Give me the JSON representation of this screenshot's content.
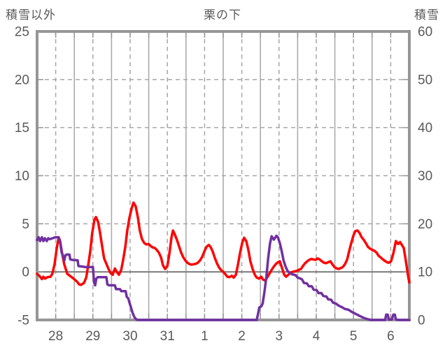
{
  "chart_data": {
    "type": "line",
    "title": "栗の下",
    "left_axis": {
      "title": "積雪以外",
      "min": -5,
      "max": 25,
      "ticks": [
        25,
        20,
        15,
        10,
        5,
        0,
        -5
      ]
    },
    "right_axis": {
      "title": "積雪",
      "min": 0,
      "max": 60,
      "ticks": [
        60,
        50,
        40,
        30,
        20,
        10,
        0
      ]
    },
    "x_axis": {
      "labels": [
        "28",
        "29",
        "30",
        "31",
        "1",
        "2",
        "3",
        "4",
        "5",
        "6"
      ],
      "days": 10
    },
    "grid": {
      "horizontal_dashed_at": [
        20,
        15,
        10,
        5
      ],
      "zero_line_at": 0,
      "vertical_solid_every_day": true,
      "vertical_dashed_at_half_day": true
    },
    "legend": "none",
    "colors": {
      "red_series": "#ff0000",
      "purple_series": "#7030a0",
      "text": "#595959",
      "grid": "#a6a6a6",
      "frame": "#969696",
      "zero_line": "#808080"
    },
    "series": [
      {
        "name": "積雪以外",
        "axis": "left",
        "color_key": "red_series",
        "points": [
          [
            0.0,
            -0.2
          ],
          [
            0.07,
            -0.45
          ],
          [
            0.13,
            -0.75
          ],
          [
            0.17,
            -0.5
          ],
          [
            0.21,
            -0.7
          ],
          [
            0.28,
            -0.55
          ],
          [
            0.36,
            -0.5
          ],
          [
            0.41,
            -0.2
          ],
          [
            0.47,
            0.8
          ],
          [
            0.53,
            2.5
          ],
          [
            0.58,
            3.6
          ],
          [
            0.62,
            3.2
          ],
          [
            0.66,
            2.2
          ],
          [
            0.73,
            0.8
          ],
          [
            0.81,
            -0.2
          ],
          [
            0.88,
            -0.4
          ],
          [
            0.98,
            -0.7
          ],
          [
            1.07,
            -1.0
          ],
          [
            1.13,
            -1.3
          ],
          [
            1.18,
            -1.35
          ],
          [
            1.26,
            -1.15
          ],
          [
            1.32,
            -0.6
          ],
          [
            1.37,
            0.6
          ],
          [
            1.43,
            2.2
          ],
          [
            1.48,
            4.0
          ],
          [
            1.54,
            5.4
          ],
          [
            1.58,
            5.7
          ],
          [
            1.64,
            5.2
          ],
          [
            1.69,
            4.1
          ],
          [
            1.75,
            2.6
          ],
          [
            1.8,
            1.4
          ],
          [
            1.86,
            0.85
          ],
          [
            1.92,
            0.3
          ],
          [
            1.97,
            -0.1
          ],
          [
            2.03,
            -0.3
          ],
          [
            2.09,
            0.35
          ],
          [
            2.14,
            0.0
          ],
          [
            2.2,
            -0.3
          ],
          [
            2.26,
            0.2
          ],
          [
            2.31,
            1.2
          ],
          [
            2.37,
            2.6
          ],
          [
            2.42,
            4.2
          ],
          [
            2.48,
            5.6
          ],
          [
            2.54,
            6.6
          ],
          [
            2.59,
            7.2
          ],
          [
            2.65,
            6.8
          ],
          [
            2.71,
            5.6
          ],
          [
            2.76,
            4.3
          ],
          [
            2.82,
            3.4
          ],
          [
            2.88,
            3.0
          ],
          [
            2.93,
            2.85
          ],
          [
            2.99,
            2.9
          ],
          [
            3.05,
            2.7
          ],
          [
            3.1,
            2.55
          ],
          [
            3.16,
            2.5
          ],
          [
            3.21,
            2.3
          ],
          [
            3.27,
            2.0
          ],
          [
            3.33,
            1.5
          ],
          [
            3.38,
            0.7
          ],
          [
            3.44,
            0.3
          ],
          [
            3.5,
            0.6
          ],
          [
            3.55,
            1.8
          ],
          [
            3.61,
            3.6
          ],
          [
            3.65,
            4.3
          ],
          [
            3.7,
            3.9
          ],
          [
            3.76,
            3.3
          ],
          [
            3.82,
            2.6
          ],
          [
            3.87,
            2.0
          ],
          [
            3.93,
            1.5
          ],
          [
            3.98,
            1.2
          ],
          [
            4.04,
            0.95
          ],
          [
            4.1,
            0.8
          ],
          [
            4.15,
            0.75
          ],
          [
            4.21,
            0.8
          ],
          [
            4.27,
            0.85
          ],
          [
            4.32,
            0.95
          ],
          [
            4.38,
            1.2
          ],
          [
            4.44,
            1.6
          ],
          [
            4.49,
            2.1
          ],
          [
            4.55,
            2.6
          ],
          [
            4.61,
            2.8
          ],
          [
            4.66,
            2.6
          ],
          [
            4.72,
            2.1
          ],
          [
            4.77,
            1.5
          ],
          [
            4.83,
            0.9
          ],
          [
            4.89,
            0.45
          ],
          [
            4.94,
            0.2
          ],
          [
            5.0,
            0.0
          ],
          [
            5.06,
            -0.25
          ],
          [
            5.11,
            -0.5
          ],
          [
            5.17,
            -0.55
          ],
          [
            5.23,
            -0.4
          ],
          [
            5.28,
            -0.6
          ],
          [
            5.34,
            -0.3
          ],
          [
            5.39,
            0.6
          ],
          [
            5.45,
            1.9
          ],
          [
            5.51,
            3.0
          ],
          [
            5.56,
            3.55
          ],
          [
            5.62,
            3.2
          ],
          [
            5.68,
            2.2
          ],
          [
            5.73,
            1.1
          ],
          [
            5.79,
            0.3
          ],
          [
            5.85,
            -0.3
          ],
          [
            5.9,
            -0.6
          ],
          [
            5.96,
            -0.7
          ],
          [
            6.02,
            -0.5
          ],
          [
            6.07,
            -0.8
          ],
          [
            6.13,
            -0.9
          ],
          [
            6.18,
            -0.6
          ],
          [
            6.24,
            -0.2
          ],
          [
            6.3,
            0.2
          ],
          [
            6.35,
            0.5
          ],
          [
            6.41,
            0.8
          ],
          [
            6.47,
            1.0
          ],
          [
            6.52,
            1.1
          ],
          [
            6.58,
            0.4
          ],
          [
            6.64,
            -0.3
          ],
          [
            6.69,
            -0.5
          ],
          [
            6.75,
            -0.3
          ],
          [
            6.8,
            -0.1
          ],
          [
            6.86,
            0.0
          ],
          [
            6.92,
            0.05
          ],
          [
            6.97,
            0.1
          ],
          [
            7.03,
            0.2
          ],
          [
            7.09,
            0.3
          ],
          [
            7.14,
            0.6
          ],
          [
            7.2,
            0.9
          ],
          [
            7.26,
            1.1
          ],
          [
            7.31,
            1.25
          ],
          [
            7.37,
            1.35
          ],
          [
            7.42,
            1.3
          ],
          [
            7.48,
            1.25
          ],
          [
            7.54,
            1.4
          ],
          [
            7.59,
            1.3
          ],
          [
            7.65,
            1.1
          ],
          [
            7.71,
            0.95
          ],
          [
            7.76,
            0.9
          ],
          [
            7.82,
            1.0
          ],
          [
            7.88,
            1.1
          ],
          [
            7.93,
            0.8
          ],
          [
            7.99,
            0.5
          ],
          [
            8.05,
            0.35
          ],
          [
            8.1,
            0.3
          ],
          [
            8.16,
            0.4
          ],
          [
            8.21,
            0.5
          ],
          [
            8.27,
            0.8
          ],
          [
            8.33,
            1.3
          ],
          [
            8.38,
            2.1
          ],
          [
            8.44,
            3.0
          ],
          [
            8.5,
            3.8
          ],
          [
            8.55,
            4.25
          ],
          [
            8.61,
            4.3
          ],
          [
            8.67,
            4.0
          ],
          [
            8.72,
            3.6
          ],
          [
            8.78,
            3.3
          ],
          [
            8.83,
            3.0
          ],
          [
            8.89,
            2.6
          ],
          [
            8.95,
            2.4
          ],
          [
            9.0,
            2.3
          ],
          [
            9.06,
            2.2
          ],
          [
            9.12,
            2.0
          ],
          [
            9.17,
            1.7
          ],
          [
            9.23,
            1.5
          ],
          [
            9.29,
            1.3
          ],
          [
            9.34,
            1.15
          ],
          [
            9.4,
            1.0
          ],
          [
            9.45,
            0.95
          ],
          [
            9.51,
            1.1
          ],
          [
            9.57,
            1.9
          ],
          [
            9.64,
            3.2
          ],
          [
            9.7,
            2.9
          ],
          [
            9.75,
            3.1
          ],
          [
            9.85,
            2.5
          ],
          [
            9.9,
            1.3
          ],
          [
            9.94,
            0.3
          ],
          [
            9.97,
            -0.5
          ],
          [
            10.0,
            -1.1
          ]
        ]
      },
      {
        "name": "積雪",
        "axis": "right",
        "color_key": "purple_series",
        "points": [
          [
            0.0,
            16.6
          ],
          [
            0.04,
            17.2
          ],
          [
            0.08,
            16.4
          ],
          [
            0.13,
            17.2
          ],
          [
            0.17,
            16.4
          ],
          [
            0.21,
            17.0
          ],
          [
            0.26,
            16.4
          ],
          [
            0.3,
            17.0
          ],
          [
            0.34,
            16.8
          ],
          [
            0.42,
            17.0
          ],
          [
            0.49,
            17.2
          ],
          [
            0.56,
            17.2
          ],
          [
            0.6,
            16.8
          ],
          [
            0.63,
            15.6
          ],
          [
            0.66,
            14.0
          ],
          [
            0.69,
            13.5
          ],
          [
            0.73,
            12.3
          ],
          [
            0.76,
            13.4
          ],
          [
            0.79,
            13.6
          ],
          [
            0.87,
            13.6
          ],
          [
            0.89,
            12.6
          ],
          [
            0.95,
            12.5
          ],
          [
            1.09,
            12.4
          ],
          [
            1.11,
            11.2
          ],
          [
            1.23,
            11.1
          ],
          [
            1.28,
            11.0
          ],
          [
            1.5,
            11.0
          ],
          [
            1.53,
            7.8
          ],
          [
            1.56,
            7.2
          ],
          [
            1.59,
            8.6
          ],
          [
            1.63,
            8.9
          ],
          [
            1.86,
            8.9
          ],
          [
            1.89,
            7.4
          ],
          [
            1.93,
            7.2
          ],
          [
            2.09,
            7.2
          ],
          [
            2.12,
            6.4
          ],
          [
            2.23,
            6.4
          ],
          [
            2.26,
            6.0
          ],
          [
            2.38,
            6.0
          ],
          [
            2.41,
            4.8
          ],
          [
            2.45,
            4.5
          ],
          [
            2.49,
            3.4
          ],
          [
            2.53,
            2.4
          ],
          [
            2.57,
            1.4
          ],
          [
            2.62,
            0.5
          ],
          [
            2.67,
            0.1
          ],
          [
            2.71,
            0.0
          ],
          [
            5.9,
            0.0
          ],
          [
            5.94,
            1.4
          ],
          [
            5.97,
            2.6
          ],
          [
            6.02,
            2.8
          ],
          [
            6.06,
            3.4
          ],
          [
            6.11,
            6.0
          ],
          [
            6.16,
            9.0
          ],
          [
            6.21,
            13.0
          ],
          [
            6.26,
            16.0
          ],
          [
            6.3,
            17.4
          ],
          [
            6.36,
            16.7
          ],
          [
            6.43,
            17.5
          ],
          [
            6.47,
            17.2
          ],
          [
            6.52,
            16.0
          ],
          [
            6.57,
            14.4
          ],
          [
            6.62,
            12.4
          ],
          [
            6.68,
            11.0
          ],
          [
            6.73,
            10.2
          ],
          [
            6.78,
            9.8
          ],
          [
            6.85,
            9.5
          ],
          [
            6.95,
            9.3
          ],
          [
            7.0,
            8.8
          ],
          [
            7.08,
            8.6
          ],
          [
            7.12,
            8.4
          ],
          [
            7.17,
            7.7
          ],
          [
            7.25,
            7.6
          ],
          [
            7.3,
            7.0
          ],
          [
            7.38,
            7.0
          ],
          [
            7.43,
            6.3
          ],
          [
            7.51,
            6.2
          ],
          [
            7.56,
            5.6
          ],
          [
            7.64,
            5.6
          ],
          [
            7.69,
            5.0
          ],
          [
            7.77,
            4.9
          ],
          [
            7.82,
            4.3
          ],
          [
            7.9,
            4.2
          ],
          [
            7.95,
            3.6
          ],
          [
            8.03,
            3.4
          ],
          [
            8.1,
            3.0
          ],
          [
            8.18,
            2.7
          ],
          [
            8.27,
            2.3
          ],
          [
            8.37,
            2.1
          ],
          [
            8.45,
            1.7
          ],
          [
            8.55,
            1.3
          ],
          [
            8.65,
            0.9
          ],
          [
            8.76,
            0.5
          ],
          [
            8.86,
            0.2
          ],
          [
            8.97,
            0.0
          ],
          [
            9.35,
            0.0
          ],
          [
            9.38,
            1.1
          ],
          [
            9.42,
            1.1
          ],
          [
            9.45,
            0.1
          ],
          [
            9.53,
            0.1
          ],
          [
            9.57,
            1.1
          ],
          [
            9.61,
            1.1
          ],
          [
            9.64,
            0.1
          ],
          [
            9.7,
            0.0
          ],
          [
            10.0,
            0.0
          ]
        ]
      }
    ]
  }
}
